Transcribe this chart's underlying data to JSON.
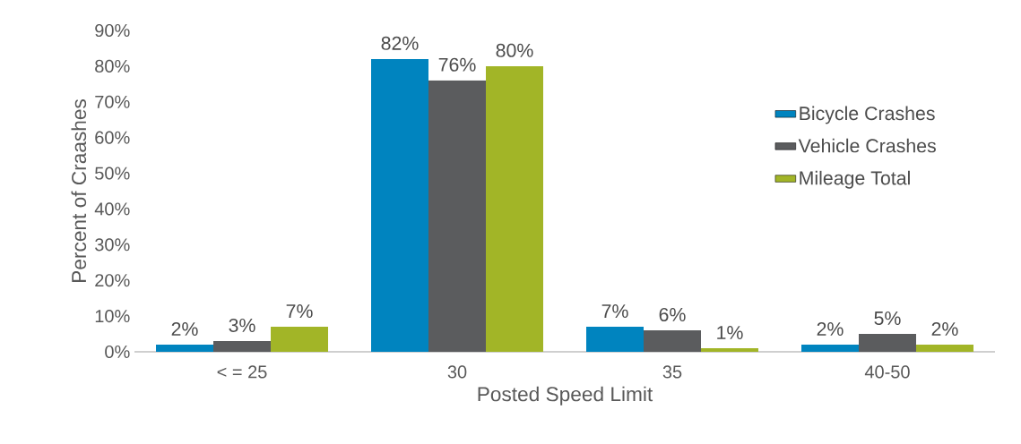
{
  "chart_data": {
    "type": "bar",
    "xlabel": "Posted Speed Limit",
    "ylabel": "Percent of Craashes",
    "categories": [
      "< = 25",
      "30",
      "35",
      "40-50"
    ],
    "series": [
      {
        "name": "Bicycle Crashes",
        "color": "#0084bf",
        "values": [
          2,
          82,
          7,
          2
        ],
        "value_labels": [
          "2%",
          "82%",
          "7%",
          "2%"
        ]
      },
      {
        "name": "Vehicle Crashes",
        "color": "#5b5c5e",
        "values": [
          3,
          76,
          6,
          5
        ],
        "value_labels": [
          "3%",
          "76%",
          "6%",
          "5%"
        ]
      },
      {
        "name": "Mileage Total",
        "color": "#a2b527",
        "values": [
          7,
          80,
          1,
          2
        ],
        "value_labels": [
          "7%",
          "80%",
          "1%",
          "2%"
        ]
      }
    ],
    "ylim": [
      0,
      90
    ],
    "yticks": [
      {
        "value": 0,
        "label": "0%"
      },
      {
        "value": 10,
        "label": "10%"
      },
      {
        "value": 20,
        "label": "20%"
      },
      {
        "value": 30,
        "label": "30%"
      },
      {
        "value": 40,
        "label": "40%"
      },
      {
        "value": 50,
        "label": "50%"
      },
      {
        "value": 60,
        "label": "60%"
      },
      {
        "value": 70,
        "label": "70%"
      },
      {
        "value": 80,
        "label": "80%"
      },
      {
        "value": 90,
        "label": "90%"
      }
    ],
    "legend": "right",
    "grid": false
  }
}
